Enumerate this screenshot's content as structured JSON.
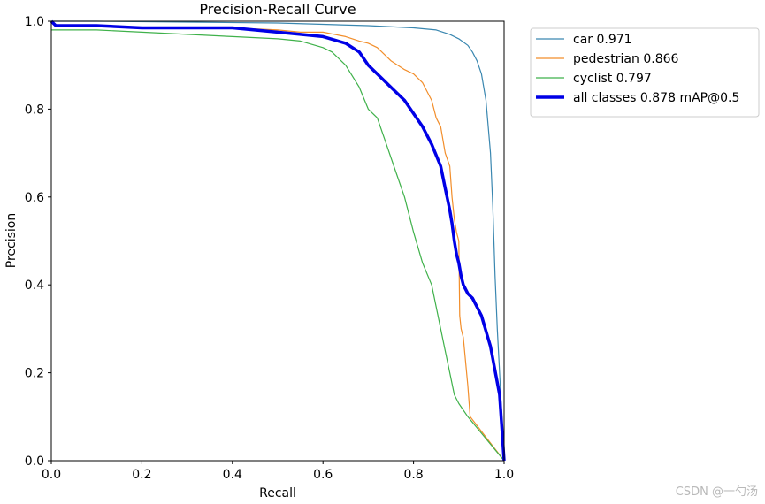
{
  "chart_data": {
    "type": "line",
    "title": "Precision-Recall Curve",
    "xlabel": "Recall",
    "ylabel": "Precision",
    "xlim": [
      0,
      1
    ],
    "ylim": [
      0,
      1
    ],
    "xticks": [
      "0.0",
      "0.2",
      "0.4",
      "0.6",
      "0.8",
      "1.0"
    ],
    "yticks": [
      "0.0",
      "0.2",
      "0.4",
      "0.6",
      "0.8",
      "1.0"
    ],
    "grid": false,
    "legend_position": "outside-top-right",
    "series": [
      {
        "name": "car 0.971",
        "color": "#3a87b0",
        "width": "thin",
        "x": [
          0,
          0.02,
          0.1,
          0.3,
          0.5,
          0.6,
          0.7,
          0.8,
          0.85,
          0.88,
          0.9,
          0.92,
          0.93,
          0.94,
          0.95,
          0.96,
          0.97,
          0.975,
          0.98,
          0.985,
          0.99,
          0.995,
          1.0
        ],
        "y": [
          1.0,
          1.0,
          1.0,
          0.998,
          0.996,
          0.993,
          0.99,
          0.985,
          0.98,
          0.97,
          0.96,
          0.945,
          0.93,
          0.91,
          0.88,
          0.82,
          0.7,
          0.58,
          0.42,
          0.3,
          0.2,
          0.1,
          0.0
        ]
      },
      {
        "name": "pedestrian 0.866",
        "color": "#f28e2b",
        "width": "thin",
        "x": [
          0,
          0.01,
          0.1,
          0.2,
          0.3,
          0.4,
          0.5,
          0.55,
          0.6,
          0.65,
          0.68,
          0.7,
          0.72,
          0.75,
          0.78,
          0.8,
          0.82,
          0.84,
          0.85,
          0.86,
          0.87,
          0.88,
          0.885,
          0.89,
          0.895,
          0.9,
          0.902,
          0.905,
          0.91,
          0.92,
          0.925,
          1.0
        ],
        "y": [
          1.0,
          0.99,
          0.99,
          0.985,
          0.985,
          0.985,
          0.98,
          0.975,
          0.975,
          0.965,
          0.955,
          0.95,
          0.94,
          0.91,
          0.89,
          0.88,
          0.86,
          0.82,
          0.78,
          0.76,
          0.7,
          0.67,
          0.6,
          0.55,
          0.52,
          0.5,
          0.33,
          0.3,
          0.28,
          0.17,
          0.1,
          0.0
        ]
      },
      {
        "name": "cyclist 0.797",
        "color": "#3fb14a",
        "width": "thin",
        "x": [
          0,
          0.01,
          0.1,
          0.2,
          0.3,
          0.4,
          0.5,
          0.55,
          0.6,
          0.62,
          0.65,
          0.68,
          0.7,
          0.72,
          0.74,
          0.76,
          0.78,
          0.8,
          0.82,
          0.84,
          0.85,
          0.86,
          0.87,
          0.88,
          0.89,
          0.9,
          0.92,
          1.0
        ],
        "y": [
          0.98,
          0.98,
          0.98,
          0.975,
          0.97,
          0.965,
          0.96,
          0.955,
          0.94,
          0.93,
          0.9,
          0.85,
          0.8,
          0.78,
          0.72,
          0.66,
          0.6,
          0.52,
          0.45,
          0.4,
          0.35,
          0.3,
          0.25,
          0.2,
          0.15,
          0.13,
          0.1,
          0.0
        ]
      },
      {
        "name": "all classes 0.878 mAP@0.5",
        "color": "#0000e6",
        "width": "thick",
        "x": [
          0,
          0.01,
          0.1,
          0.2,
          0.3,
          0.4,
          0.5,
          0.55,
          0.6,
          0.65,
          0.68,
          0.7,
          0.72,
          0.75,
          0.78,
          0.8,
          0.82,
          0.84,
          0.86,
          0.87,
          0.88,
          0.885,
          0.89,
          0.895,
          0.9,
          0.905,
          0.91,
          0.92,
          0.93,
          0.95,
          0.97,
          0.99,
          1.0
        ],
        "y": [
          1.0,
          0.99,
          0.99,
          0.985,
          0.985,
          0.985,
          0.975,
          0.97,
          0.965,
          0.95,
          0.93,
          0.9,
          0.88,
          0.85,
          0.82,
          0.79,
          0.76,
          0.72,
          0.67,
          0.62,
          0.57,
          0.54,
          0.5,
          0.47,
          0.45,
          0.42,
          0.4,
          0.38,
          0.37,
          0.33,
          0.26,
          0.15,
          0.0
        ]
      }
    ]
  },
  "watermark": "CSDN @一勺汤"
}
